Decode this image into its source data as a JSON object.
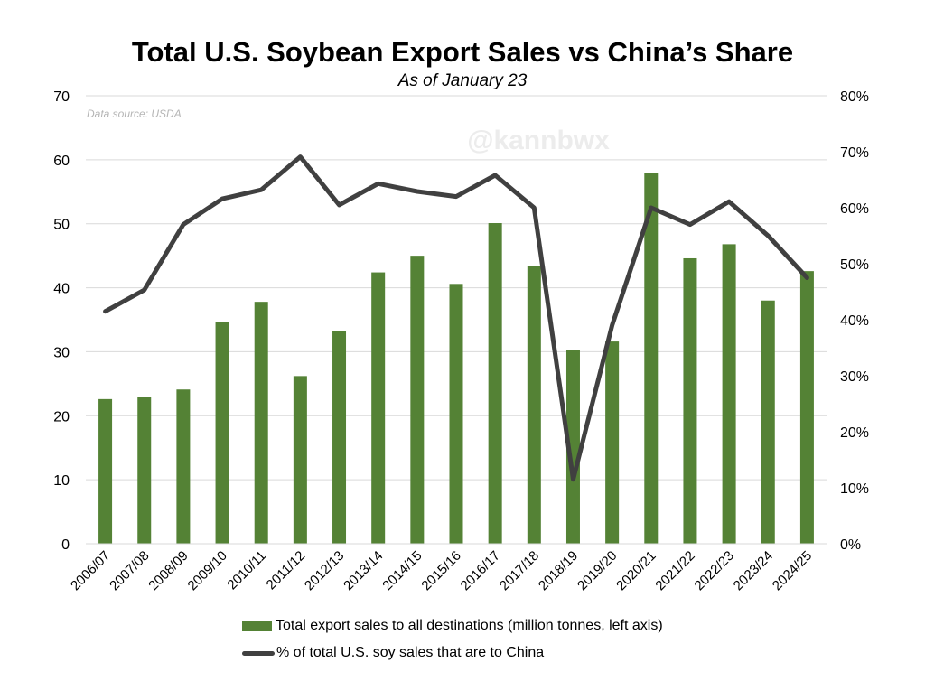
{
  "colors": {
    "bar": "#548235",
    "line": "#404040",
    "grid": "#d9d9d9"
  },
  "watermark": "@kannbwx",
  "chart_data": {
    "type": "bar",
    "title": "Total U.S. Soybean Export Sales vs China’s Share",
    "subtitle": "As of January 23",
    "source_note": "Data source: USDA",
    "categories": [
      "2006/07",
      "2007/08",
      "2008/09",
      "2009/10",
      "2010/11",
      "2011/12",
      "2012/13",
      "2013/14",
      "2014/15",
      "2015/16",
      "2016/17",
      "2017/18",
      "2018/19",
      "2019/20",
      "2020/21",
      "2021/22",
      "2022/23",
      "2023/24",
      "2024/25"
    ],
    "series": [
      {
        "name": "Total export sales to all destinations (million tonnes, left axis)",
        "type": "bar",
        "axis": "left",
        "values": [
          22.6,
          23.0,
          24.1,
          34.6,
          37.8,
          26.2,
          33.3,
          42.4,
          45.0,
          40.6,
          50.1,
          43.4,
          30.3,
          31.6,
          58.0,
          44.6,
          46.8,
          38.0,
          42.6
        ]
      },
      {
        "name": "% of total U.S. soy sales that are to China",
        "type": "line",
        "axis": "right",
        "values": [
          41.5,
          45.3,
          57.0,
          61.6,
          63.2,
          69.1,
          60.5,
          64.3,
          62.9,
          62.0,
          65.8,
          60.0,
          11.5,
          39.0,
          60.0,
          57.0,
          61.1,
          55.0,
          47.5
        ]
      }
    ],
    "y_left": {
      "ylim": [
        0,
        70
      ],
      "ticks": [
        0,
        10,
        20,
        30,
        40,
        50,
        60,
        70
      ],
      "tick_labels": [
        "0",
        "10",
        "20",
        "30",
        "40",
        "50",
        "60",
        "70"
      ]
    },
    "y_right": {
      "ylim": [
        0,
        80
      ],
      "ticks": [
        0,
        10,
        20,
        30,
        40,
        50,
        60,
        70,
        80
      ],
      "tick_labels": [
        "0%",
        "10%",
        "20%",
        "30%",
        "40%",
        "50%",
        "60%",
        "70%",
        "80%"
      ]
    },
    "grid": true,
    "legend_position": "bottom"
  }
}
